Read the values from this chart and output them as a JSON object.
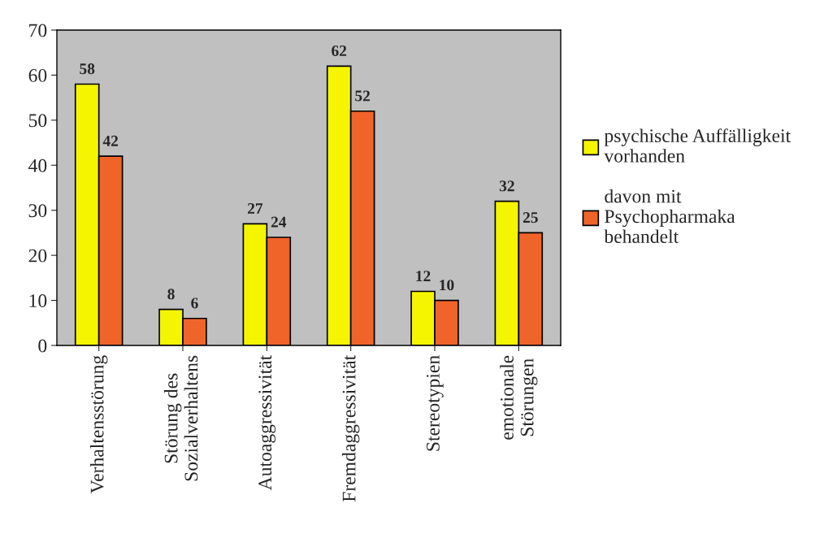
{
  "chart_data": {
    "type": "bar",
    "categories": [
      "Verhaltensstörung",
      "Störung des\nSozialverhaltens",
      "Autoaggressivität",
      "Fremdaggressivität",
      "Stereotypien",
      "emotionale\nStörungen"
    ],
    "series": [
      {
        "name": "psychische Auffälligkeit\nvorhanden",
        "color": "#f5f500",
        "values": [
          58,
          8,
          27,
          62,
          12,
          32
        ]
      },
      {
        "name": "davon mit\nPsychopharmaka\nbehandelt",
        "color": "#f0642a",
        "values": [
          42,
          6,
          24,
          52,
          10,
          25
        ]
      }
    ],
    "ylim": [
      0,
      70
    ],
    "yticks": [
      0,
      10,
      20,
      30,
      40,
      50,
      60,
      70
    ],
    "data_labels": true,
    "grid": false,
    "legend": "right"
  }
}
